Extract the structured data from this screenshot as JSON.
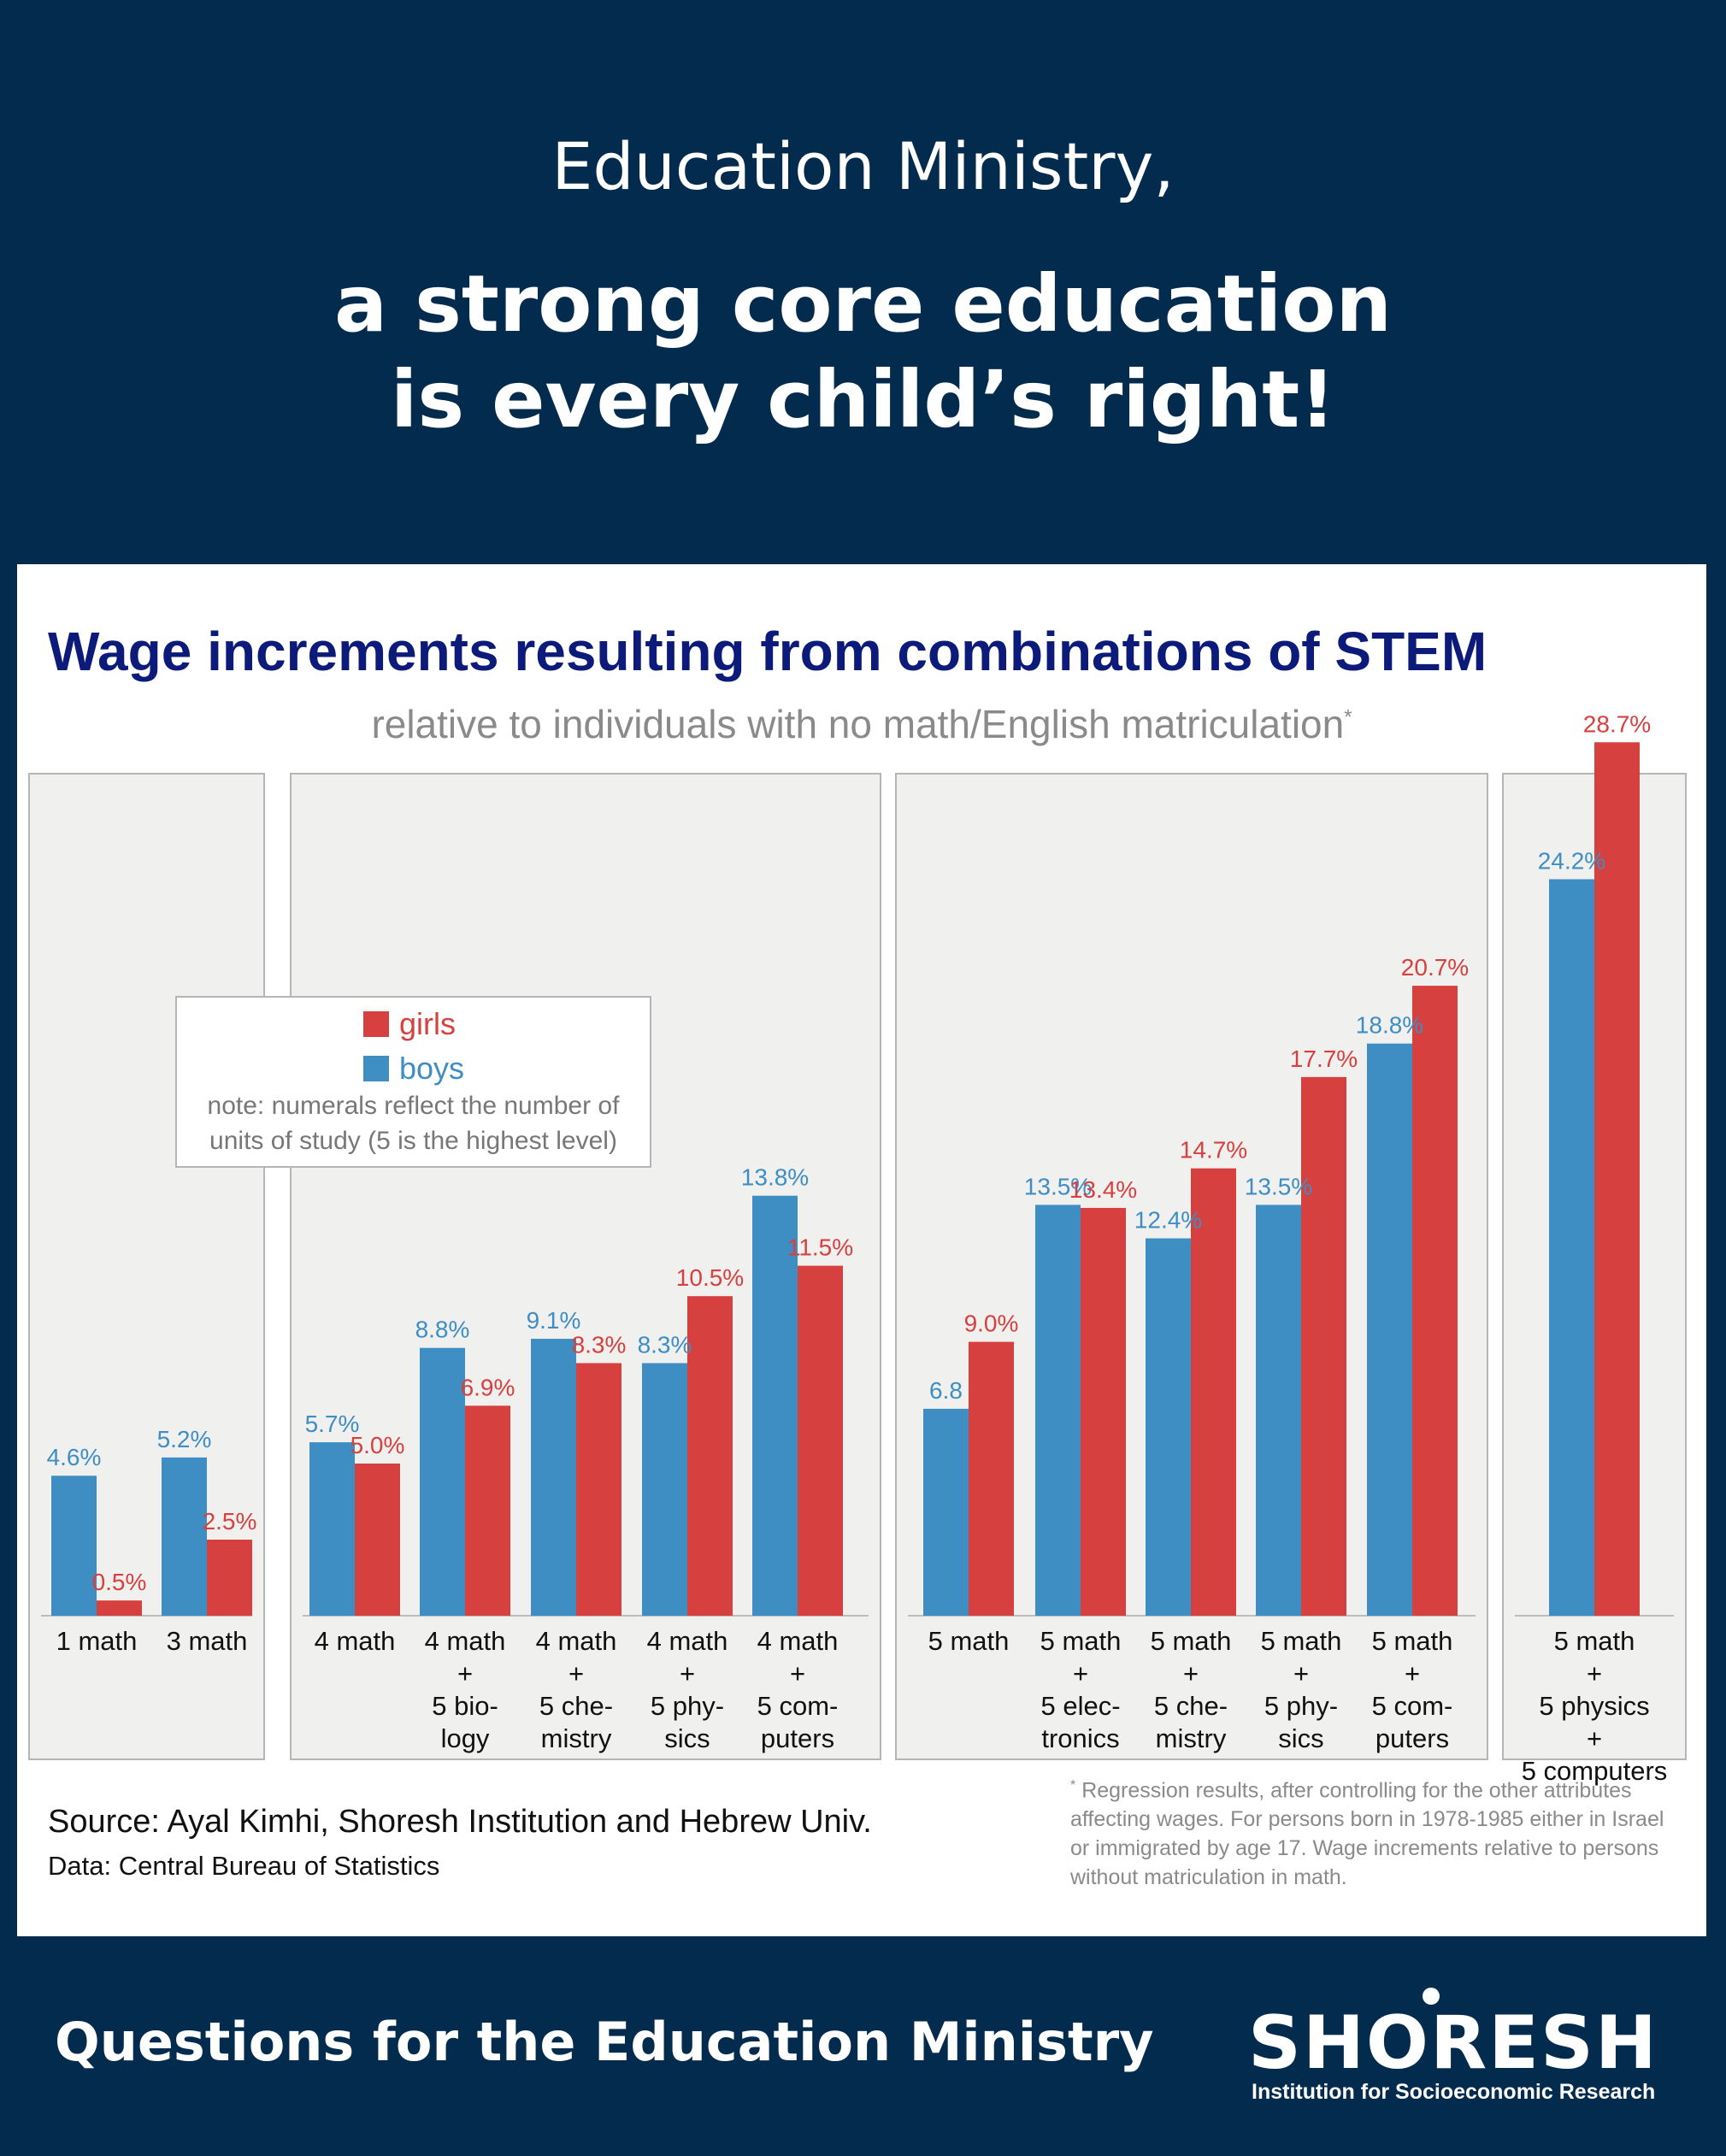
{
  "header": {
    "line1": "Education Ministry,",
    "line2a": "a strong core education",
    "line2b": "is every child’s right!"
  },
  "legend": {
    "girls_label": "girls",
    "boys_label": "boys",
    "note_line1": "note: numerals reflect the number of",
    "note_line2": "units of study (5 is the highest level)"
  },
  "source": {
    "line1": "Source: Ayal Kimhi, Shoresh Institution and Hebrew Univ.",
    "line2": "Data: Central Bureau of Statistics"
  },
  "footnote": {
    "mark": "*",
    "text": "Regression results, after controlling for the other attributes affecting wages.  For persons born in 1978-1985 either in Israel or immigrated by age 17. Wage increments relative to persons without matriculation in math."
  },
  "footer": {
    "question": "Questions for the Education Ministry",
    "logo_main": "SHORESH",
    "logo_sub": "Institution for Socioeconomic Research"
  },
  "colors": {
    "boys": "#3e8ec4",
    "girls": "#d6403e",
    "panel": "#f0f0ef",
    "title": "#0c1a7a",
    "background": "#032b4e"
  },
  "chart_data": {
    "type": "bar",
    "title": "Wage increments resulting from combinations of STEM",
    "subtitle": "relative to individuals with no math/English matriculation",
    "subtitle_mark": "*",
    "series": [
      {
        "name": "boys",
        "color": "#3e8ec4",
        "values": [
          4.6,
          5.2,
          5.7,
          8.8,
          9.1,
          8.3,
          13.8,
          6.8,
          13.5,
          12.4,
          13.5,
          18.8,
          24.2
        ]
      },
      {
        "name": "girls",
        "color": "#d6403e",
        "values": [
          0.5,
          2.5,
          5.0,
          6.9,
          8.3,
          10.5,
          11.5,
          9.0,
          13.4,
          14.7,
          17.7,
          20.7,
          28.7
        ]
      }
    ],
    "value_labels": {
      "boys": [
        "4.6%",
        "5.2%",
        "5.7%",
        "8.8%",
        "9.1%",
        "8.3%",
        "13.8%",
        "6.8",
        "13.5%",
        "12.4%",
        "13.5%",
        "18.8%",
        "24.2%"
      ],
      "girls": [
        "0.5%",
        "2.5%",
        "5.0%",
        "6.9%",
        "8.3%",
        "10.5%",
        "11.5%",
        "9.0%",
        "13.4%",
        "14.7%",
        "17.7%",
        "20.7%",
        "28.7%"
      ]
    },
    "groups": [
      {
        "categories": [
          [
            "1 math"
          ],
          [
            "3 math"
          ]
        ]
      },
      {
        "categories": [
          [
            "4 math"
          ],
          [
            "4 math",
            "+",
            "5 bio-",
            "logy"
          ],
          [
            "4 math",
            "+",
            "5 che-",
            "mistry"
          ],
          [
            "4 math",
            "+",
            "5 phy-",
            "sics"
          ],
          [
            "4 math",
            "+",
            "5 com-",
            "puters"
          ]
        ]
      },
      {
        "categories": [
          [
            "5 math"
          ],
          [
            "5 math",
            "+",
            "5 elec-",
            "tronics"
          ],
          [
            "5 math",
            "+",
            "5 che-",
            "mistry"
          ],
          [
            "5 math",
            "+",
            "5 phy-",
            "sics"
          ],
          [
            "5 math",
            "+",
            "5 com-",
            "puters"
          ]
        ]
      },
      {
        "categories": [
          [
            "5 math",
            "+",
            "5 physics",
            "+",
            "5 computers"
          ]
        ]
      }
    ],
    "ylim": [
      0,
      30
    ],
    "grid": false,
    "legend_position": "upper-left"
  }
}
